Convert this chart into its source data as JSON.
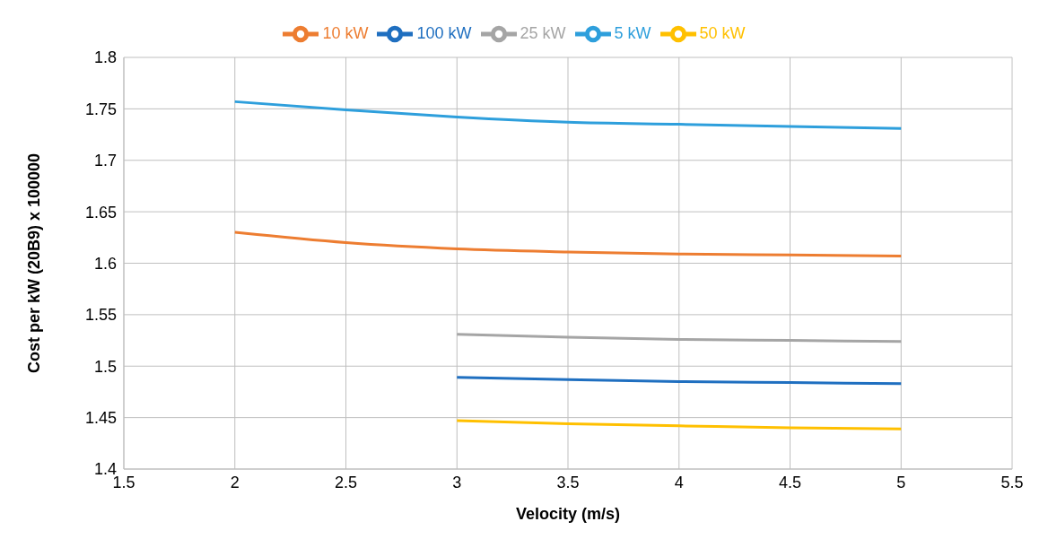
{
  "chart_data": {
    "type": "line",
    "xlabel": "Velocity (m/s)",
    "ylabel": "Cost per kW (20B9)   x 100000",
    "xlim": [
      1.5,
      5.5
    ],
    "xticks": [
      1.5,
      2,
      2.5,
      3,
      3.5,
      4,
      4.5,
      5,
      5.5
    ],
    "ylim": [
      1.4,
      1.8
    ],
    "yticks": [
      1.4,
      1.45,
      1.5,
      1.55,
      1.6,
      1.65,
      1.7,
      1.75,
      1.8
    ],
    "grid": true,
    "legend": "top",
    "marker": "none",
    "line_style": "solid",
    "series": [
      {
        "name": "5 kW",
        "color": "#2e9fdc",
        "x": [
          2,
          2.5,
          3,
          3.5,
          4,
          4.5,
          5
        ],
        "values": [
          1.757,
          1.749,
          1.742,
          1.737,
          1.735,
          1.733,
          1.731
        ]
      },
      {
        "name": "10 kW",
        "color": "#ed7d31",
        "x": [
          2,
          2.5,
          3,
          3.5,
          4,
          4.5,
          5
        ],
        "values": [
          1.63,
          1.62,
          1.614,
          1.611,
          1.609,
          1.608,
          1.607
        ]
      },
      {
        "name": "25 kW",
        "color": "#a5a5a5",
        "x": [
          3,
          3.5,
          4,
          4.5,
          5
        ],
        "values": [
          1.531,
          1.528,
          1.526,
          1.525,
          1.524
        ]
      },
      {
        "name": "50 kW",
        "color": "#ffc000",
        "x": [
          3,
          3.5,
          4,
          4.5,
          5
        ],
        "values": [
          1.447,
          1.444,
          1.442,
          1.44,
          1.439
        ]
      },
      {
        "name": "100 kW",
        "color": "#1f6fc0",
        "x": [
          3,
          3.5,
          4,
          4.5,
          5
        ],
        "values": [
          1.489,
          1.487,
          1.485,
          1.484,
          1.483
        ]
      }
    ]
  }
}
